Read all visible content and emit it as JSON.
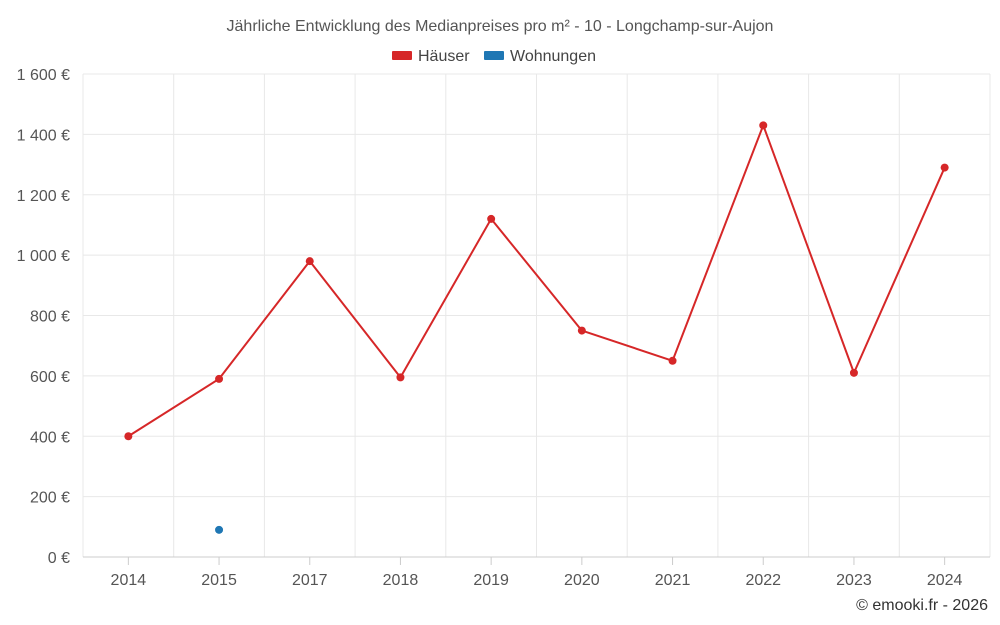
{
  "chart_data": {
    "type": "line",
    "title": "Jährliche Entwicklung des Medianpreises pro m² - 10 - Longchamp-sur-Aujon",
    "categories": [
      "2014",
      "2015",
      "2017",
      "2018",
      "2019",
      "2020",
      "2021",
      "2022",
      "2023",
      "2024"
    ],
    "series": [
      {
        "name": "Häuser",
        "color": "#d62728",
        "values": [
          400,
          590,
          980,
          595,
          1120,
          750,
          650,
          1430,
          610,
          1290
        ]
      },
      {
        "name": "Wohnungen",
        "color": "#1f77b4",
        "values": [
          null,
          90,
          null,
          null,
          null,
          null,
          null,
          null,
          null,
          null
        ]
      }
    ],
    "ylim": [
      0,
      1600
    ],
    "yticks": [
      0,
      200,
      400,
      600,
      800,
      1000,
      1200,
      1400,
      1600
    ],
    "ytick_labels": [
      "0 €",
      "200 €",
      "400 €",
      "600 €",
      "800 €",
      "1 000 €",
      "1 200 €",
      "1 400 €",
      "1 600 €"
    ],
    "xlabel": "",
    "ylabel": "",
    "grid": true,
    "legend_position": "top-center"
  },
  "credit": "© emooki.fr - 2026"
}
